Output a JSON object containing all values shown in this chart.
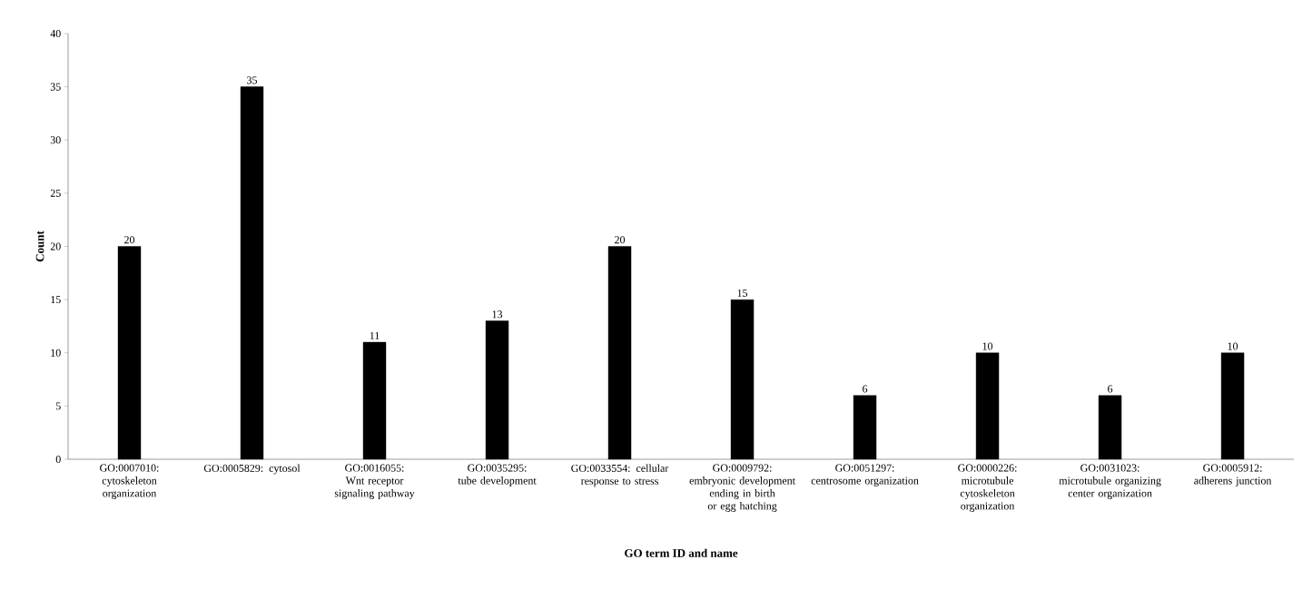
{
  "chart_data": {
    "type": "bar",
    "xlabel": "GO term ID and name",
    "ylabel": "Count",
    "categories": [
      "GO:0007010: cytoskeleton organization",
      "GO:0005829: cytosol",
      "GO:0016055: Wnt receptor signaling pathway",
      "GO:0035295: tube development",
      "GO:0033554: cellular response to stress",
      "GO:0009792: embryonic development ending in birth or egg hatching",
      "GO:0051297: centrosome organization",
      "GO:0000226: microtubule cytoskeleton organization",
      "GO:0031023: microtubule organizing center organization",
      "GO:0005912: adherens junction"
    ],
    "values": [
      20,
      35,
      11,
      13,
      20,
      15,
      6,
      10,
      6,
      10
    ],
    "color": "#000000",
    "ylim": [
      0,
      40
    ],
    "yticks": [
      0,
      5,
      10,
      15,
      20,
      25,
      30,
      35,
      40
    ],
    "data_labels": true
  }
}
